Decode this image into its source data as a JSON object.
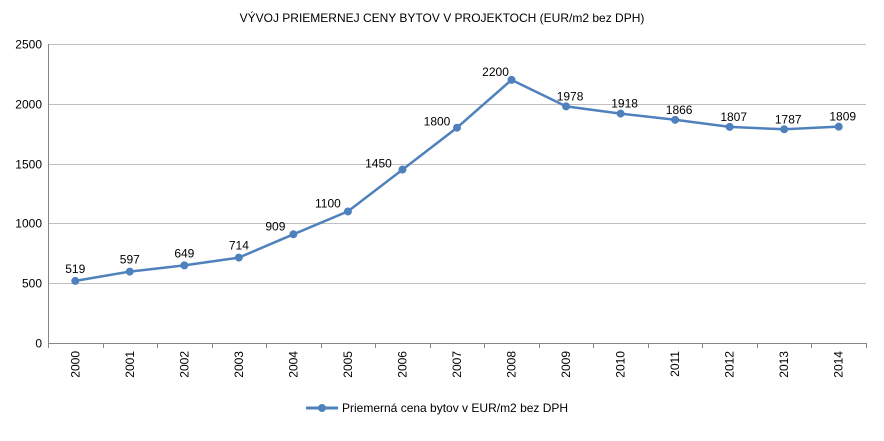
{
  "chart_data": {
    "type": "line",
    "title": "VÝVOJ PRIEMERNEJ CENY BYTOV V PROJEKTOCH (EUR/m2 bez DPH)",
    "categories": [
      "2000",
      "2001",
      "2002",
      "2003",
      "2004",
      "2005",
      "2006",
      "2007",
      "2008",
      "2009",
      "2010",
      "2011",
      "2012",
      "2013",
      "2014"
    ],
    "series": [
      {
        "name": "Priemerná cena bytov v EUR/m2 bez DPH",
        "values": [
          519,
          597,
          649,
          714,
          909,
          1100,
          1450,
          1800,
          2200,
          1978,
          1918,
          1866,
          1807,
          1787,
          1809
        ],
        "color": "#4f81bd"
      }
    ],
    "ylim": [
      0,
      2500
    ],
    "y_ticks": [
      0,
      500,
      1000,
      1500,
      2000,
      2500
    ],
    "grid": true,
    "legend_position": "bottom",
    "data_labels": true,
    "x_tick_rotation": "vertical",
    "xlabel": "",
    "ylabel": ""
  }
}
